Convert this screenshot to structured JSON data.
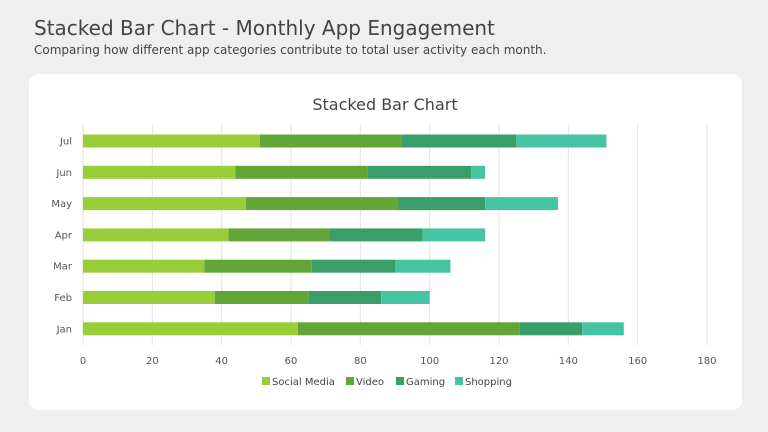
{
  "header": {
    "title": "Stacked Bar Chart - Monthly App Engagement",
    "subtitle": "Comparing how different app categories contribute to total user activity each month."
  },
  "chart_data": {
    "type": "bar",
    "orientation": "horizontal",
    "stacked": true,
    "title": "Stacked Bar Chart",
    "categories": [
      "Jan",
      "Feb",
      "Mar",
      "Apr",
      "May",
      "Jun",
      "Jul"
    ],
    "series": [
      {
        "name": "Social Media",
        "color": "#9acd3a",
        "values": [
          62,
          38,
          35,
          42,
          47,
          44,
          51
        ]
      },
      {
        "name": "Video",
        "color": "#62a637",
        "values": [
          64,
          27,
          31,
          29,
          44,
          38,
          41
        ]
      },
      {
        "name": "Gaming",
        "color": "#3a9e68",
        "values": [
          18,
          21,
          24,
          27,
          25,
          30,
          33
        ]
      },
      {
        "name": "Shopping",
        "color": "#45c3a3",
        "values": [
          12,
          14,
          16,
          18,
          21,
          4,
          26
        ]
      }
    ],
    "xlim": [
      0,
      180
    ],
    "xticks": [
      0,
      20,
      40,
      60,
      80,
      100,
      120,
      140,
      160,
      180
    ],
    "grid": "vertical",
    "legend": "bottom-center"
  }
}
